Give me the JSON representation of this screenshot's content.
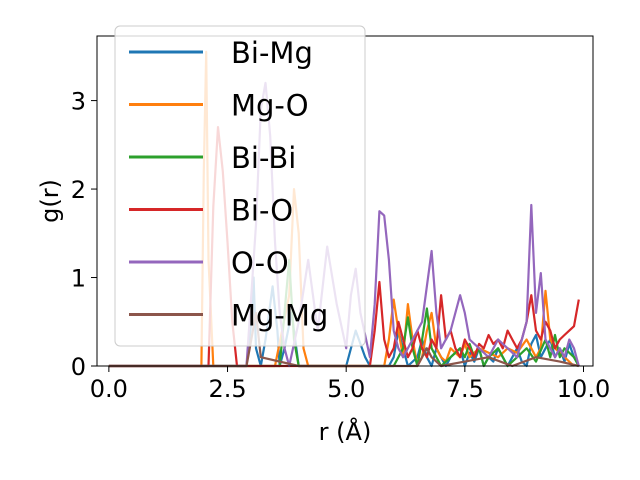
{
  "chart_data": {
    "type": "line",
    "xlabel": "r (Å)",
    "ylabel": "g(r)",
    "xlim": [
      -0.25,
      10.2
    ],
    "ylim": [
      0,
      3.73
    ],
    "xticks": [
      0.0,
      2.5,
      5.0,
      7.5,
      10.0
    ],
    "xtick_labels": [
      "0.0",
      "2.5",
      "5.0",
      "7.5",
      "10.0"
    ],
    "yticks": [
      0,
      1,
      2,
      3
    ],
    "ytick_labels": [
      "0",
      "1",
      "2",
      "3"
    ],
    "grid": false,
    "legend_position": "top-left",
    "series": [
      {
        "name": "Bi-Mg",
        "color": "#1f77b4",
        "x": [
          0,
          2.9,
          3.0,
          3.05,
          3.1,
          3.2,
          3.3,
          3.45,
          3.55,
          3.6,
          3.7,
          3.85,
          4.0,
          4.5,
          5.0,
          5.2,
          5.4,
          5.5,
          5.6,
          5.9,
          6.0,
          6.1,
          6.2,
          6.3,
          6.5,
          6.6,
          6.7,
          6.8,
          6.9,
          7.0,
          7.1,
          7.2,
          7.4,
          7.5,
          7.6,
          7.7,
          7.8,
          7.9,
          8.0,
          8.1,
          8.2,
          8.3,
          8.4,
          8.5,
          8.6,
          8.7,
          8.8,
          8.9,
          9.0,
          9.1,
          9.2,
          9.3,
          9.4,
          9.5,
          9.6,
          9.7,
          9.8,
          9.9
        ],
        "y": [
          0,
          0,
          0.5,
          1.0,
          0.2,
          0,
          0.3,
          0.9,
          0.4,
          0,
          0.2,
          0.6,
          0,
          0,
          0,
          0.4,
          0.1,
          0,
          0,
          0,
          0.1,
          0.4,
          0.2,
          0,
          0.1,
          0.3,
          0.1,
          0,
          0.2,
          0.1,
          0,
          0.1,
          0.2,
          0,
          0.15,
          0.05,
          0.2,
          0,
          0.1,
          0.05,
          0.2,
          0.1,
          0,
          0.1,
          0.2,
          0.05,
          0,
          0.25,
          0.35,
          0.1,
          0.2,
          0.3,
          0.1,
          0.2,
          0.05,
          0.25,
          0.1,
          0
        ]
      },
      {
        "name": "Mg-O",
        "color": "#ff7f0e",
        "x": [
          0,
          1.95,
          2.0,
          2.05,
          2.1,
          2.2,
          2.3,
          2.5,
          3.0,
          3.5,
          3.8,
          3.9,
          4.0,
          4.1,
          4.2,
          4.5,
          5.0,
          5.5,
          5.8,
          5.9,
          6.0,
          6.1,
          6.2,
          6.3,
          6.4,
          6.5,
          6.6,
          6.7,
          6.8,
          6.9,
          7.0,
          7.1,
          7.2,
          7.4,
          7.5,
          7.6,
          7.8,
          8.0,
          8.2,
          8.4,
          8.6,
          8.8,
          8.9,
          9.0,
          9.1,
          9.2,
          9.3,
          9.4,
          9.6,
          9.8
        ],
        "y": [
          0,
          0,
          2.2,
          3.55,
          1.2,
          0,
          0,
          0,
          0,
          0,
          0.8,
          2.0,
          1.5,
          0.2,
          0,
          0,
          0,
          0,
          0,
          0.3,
          0.75,
          0.4,
          0.1,
          0.7,
          0.3,
          0,
          0.1,
          0.4,
          0.6,
          0.2,
          0.1,
          0.05,
          0.2,
          0.1,
          0.25,
          0.1,
          0.2,
          0.15,
          0.1,
          0.2,
          0.15,
          0.3,
          0.2,
          0.1,
          0.2,
          0.85,
          0.3,
          0.2,
          0.1,
          0
        ]
      },
      {
        "name": "Bi-Bi",
        "color": "#2ca02c",
        "x": [
          0,
          3.6,
          3.7,
          3.8,
          3.9,
          4.0,
          4.5,
          5.0,
          5.5,
          6.0,
          6.2,
          6.3,
          6.4,
          6.5,
          6.6,
          6.7,
          6.8,
          6.9,
          7.0,
          7.2,
          7.4,
          7.5,
          7.6,
          7.7,
          7.8,
          7.9,
          8.0,
          8.2,
          8.4,
          8.6,
          8.8,
          9.0,
          9.2,
          9.3,
          9.4,
          9.5,
          9.6,
          9.8,
          9.9
        ],
        "y": [
          0,
          0,
          0.6,
          1.2,
          0.3,
          0,
          0,
          0,
          0,
          0,
          0.2,
          0.55,
          0.2,
          0,
          0.3,
          0.65,
          0.2,
          0.1,
          0,
          0.1,
          0.2,
          0.1,
          0.25,
          0.1,
          0.2,
          0,
          0.1,
          0.2,
          0,
          0.1,
          0.2,
          0.05,
          0.3,
          0.1,
          0.35,
          0.1,
          0.2,
          0.1,
          0
        ]
      },
      {
        "name": "Bi-O",
        "color": "#d62728",
        "x": [
          0,
          2.1,
          2.2,
          2.3,
          2.4,
          2.5,
          2.6,
          2.7,
          2.8,
          2.9,
          3.0,
          3.5,
          4.0,
          4.5,
          5.0,
          5.5,
          5.6,
          5.7,
          5.8,
          5.9,
          6.0,
          6.1,
          6.2,
          6.3,
          6.4,
          6.5,
          6.6,
          6.7,
          6.8,
          6.9,
          7.0,
          7.1,
          7.2,
          7.3,
          7.4,
          7.5,
          7.6,
          7.7,
          7.8,
          7.9,
          8.0,
          8.1,
          8.2,
          8.3,
          8.4,
          8.5,
          8.6,
          8.7,
          8.8,
          8.9,
          9.0,
          9.1,
          9.2,
          9.3,
          9.4,
          9.5,
          9.6,
          9.7,
          9.8,
          9.9
        ],
        "y": [
          0,
          0,
          1.8,
          2.7,
          2.2,
          1.4,
          0.5,
          0,
          0,
          0,
          0,
          0,
          0,
          0,
          0,
          0,
          0.4,
          0.95,
          0.3,
          0.1,
          0.2,
          0.5,
          0.3,
          0.1,
          0.2,
          0.4,
          0.2,
          0.1,
          0.3,
          0.2,
          0.8,
          0.3,
          0.4,
          0.2,
          0.1,
          0.3,
          0.2,
          0.1,
          0.25,
          0.2,
          0.35,
          0.25,
          0.3,
          0.2,
          0.4,
          0.3,
          0.2,
          0.3,
          0.5,
          0.8,
          0.4,
          0.3,
          0.5,
          0.4,
          0.2,
          0.3,
          0.35,
          0.4,
          0.45,
          0.75
        ]
      },
      {
        "name": "O-O",
        "color": "#9467bd",
        "x": [
          0,
          2.9,
          3.0,
          3.1,
          3.2,
          3.3,
          3.4,
          3.5,
          3.6,
          3.7,
          3.8,
          4.0,
          4.2,
          4.4,
          4.6,
          4.8,
          5.0,
          5.1,
          5.2,
          5.3,
          5.5,
          5.6,
          5.7,
          5.8,
          5.9,
          6.0,
          6.1,
          6.2,
          6.4,
          6.6,
          6.8,
          6.9,
          7.0,
          7.2,
          7.4,
          7.5,
          7.6,
          7.8,
          8.0,
          8.2,
          8.4,
          8.6,
          8.8,
          8.9,
          9.0,
          9.1,
          9.2,
          9.3,
          9.4,
          9.5,
          9.6,
          9.7,
          9.8,
          9.9
        ],
        "y": [
          0,
          0,
          0.8,
          1.6,
          2.9,
          3.2,
          2.6,
          1.4,
          0.6,
          0.2,
          0,
          0.5,
          1.2,
          0.4,
          1.35,
          0.7,
          0.2,
          0.8,
          1.1,
          0.6,
          0.1,
          0.7,
          1.75,
          1.7,
          1.2,
          0.4,
          0.2,
          0.1,
          0.3,
          0.5,
          1.3,
          0.6,
          0.2,
          0.4,
          0.8,
          0.6,
          0.3,
          0.2,
          0.1,
          0.3,
          0.2,
          0.1,
          0.5,
          1.82,
          0.6,
          1.05,
          0.3,
          0.2,
          0.1,
          0.2,
          0.1,
          0.3,
          0.2,
          0
        ]
      },
      {
        "name": "Mg-Mg",
        "color": "#8c564b",
        "x": [
          0,
          2.9,
          3.0,
          3.1,
          3.2,
          4.0,
          5.0,
          6.0,
          6.5,
          6.6,
          6.7,
          6.8,
          7.0,
          7.5,
          8.0,
          8.5,
          9.0,
          9.5,
          9.9
        ],
        "y": [
          0,
          0,
          0.3,
          0.6,
          0.1,
          0,
          0,
          0,
          0,
          0.1,
          0.2,
          0.1,
          0,
          0.05,
          0.1,
          0,
          0.1,
          0.05,
          0
        ]
      }
    ]
  }
}
